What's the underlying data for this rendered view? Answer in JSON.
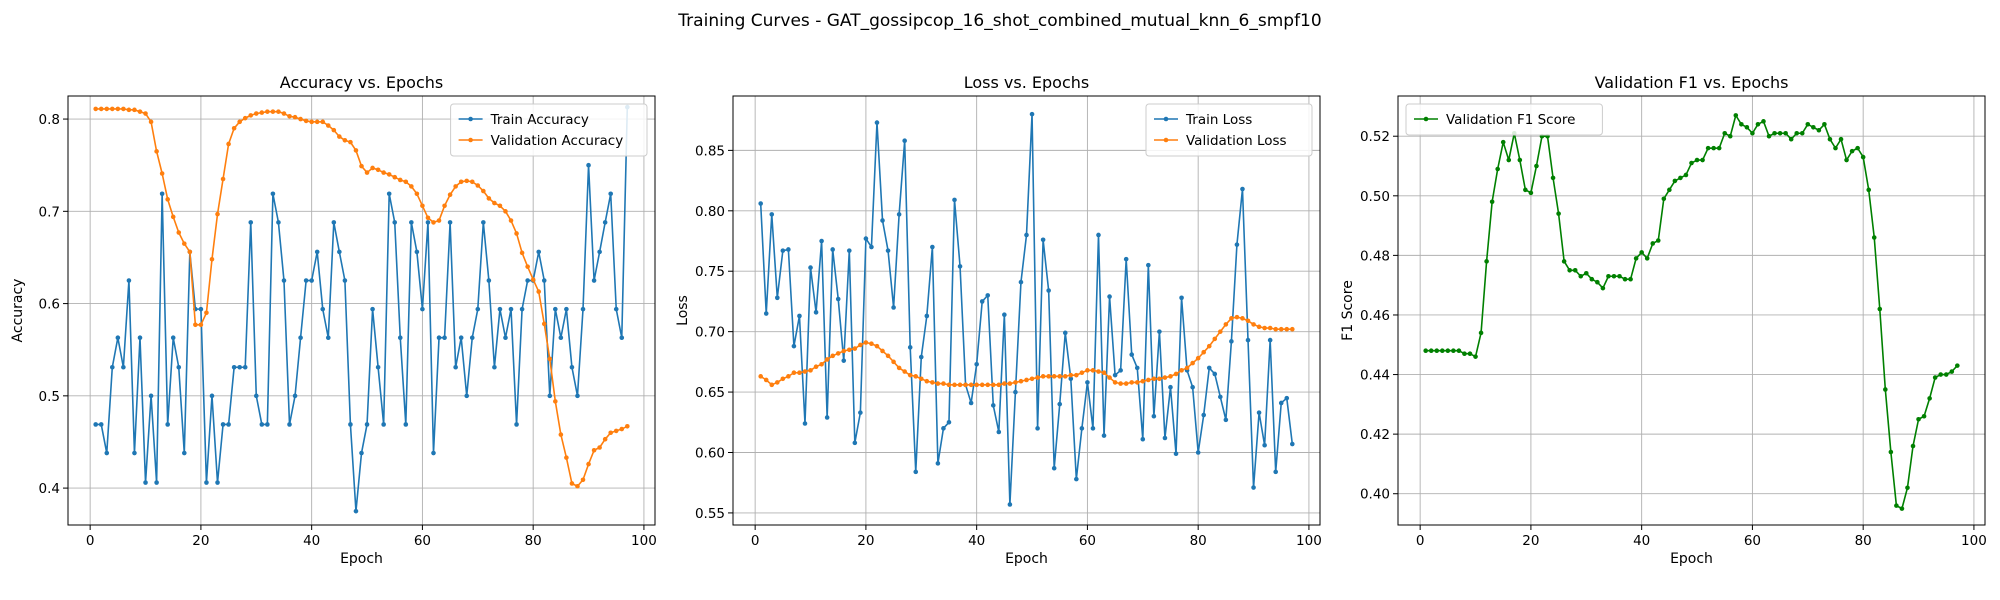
{
  "figure": {
    "suptitle": "Training Curves - GAT_gossipcop_16_shot_combined_mutual_knn_6_smpf10"
  },
  "chart_data": [
    {
      "type": "line",
      "title": "Accuracy vs. Epochs",
      "xlabel": "Epoch",
      "ylabel": "Accuracy",
      "xlim": [
        -4,
        102
      ],
      "ylim": [
        0.36,
        0.825
      ],
      "xticks": [
        0,
        20,
        40,
        60,
        80,
        100
      ],
      "xtick_labels": [
        "0",
        "20",
        "40",
        "60",
        "80",
        "100"
      ],
      "yticks": [
        0.4,
        0.5,
        0.6,
        0.7,
        0.8
      ],
      "ytick_labels": [
        "0.4",
        "0.5",
        "0.6",
        "0.7",
        "0.8"
      ],
      "grid": true,
      "legend_position": "top-right",
      "series": [
        {
          "name": "Train Accuracy",
          "color": "#1f77b4",
          "y": [
            0.469,
            0.469,
            0.438,
            0.531,
            0.563,
            0.531,
            0.625,
            0.438,
            0.563,
            0.406,
            0.5,
            0.406,
            0.719,
            0.469,
            0.563,
            0.531,
            0.438,
            0.656,
            0.594,
            0.594,
            0.406,
            0.5,
            0.406,
            0.469,
            0.469,
            0.531,
            0.531,
            0.531,
            0.688,
            0.5,
            0.469,
            0.469,
            0.719,
            0.688,
            0.625,
            0.469,
            0.5,
            0.563,
            0.625,
            0.625,
            0.656,
            0.594,
            0.563,
            0.688,
            0.656,
            0.625,
            0.469,
            0.375,
            0.438,
            0.469,
            0.594,
            0.531,
            0.469,
            0.719,
            0.688,
            0.563,
            0.469,
            0.688,
            0.656,
            0.594,
            0.688,
            0.438,
            0.563,
            0.563,
            0.688,
            0.531,
            0.563,
            0.5,
            0.563,
            0.594,
            0.688,
            0.625,
            0.531,
            0.594,
            0.563,
            0.594,
            0.469,
            0.594,
            0.625,
            0.625,
            0.656,
            0.625,
            0.5,
            0.594,
            0.563,
            0.594,
            0.531,
            0.5,
            0.594,
            0.75,
            0.625,
            0.656,
            0.688,
            0.719,
            0.594,
            0.563,
            0.813
          ]
        },
        {
          "name": "Validation Accuracy",
          "color": "#ff7f0e",
          "y": [
            0.811,
            0.811,
            0.811,
            0.811,
            0.811,
            0.811,
            0.81,
            0.81,
            0.808,
            0.806,
            0.797,
            0.765,
            0.741,
            0.713,
            0.694,
            0.677,
            0.665,
            0.656,
            0.577,
            0.577,
            0.59,
            0.648,
            0.697,
            0.735,
            0.773,
            0.79,
            0.797,
            0.801,
            0.804,
            0.806,
            0.807,
            0.808,
            0.808,
            0.808,
            0.806,
            0.803,
            0.802,
            0.8,
            0.798,
            0.797,
            0.797,
            0.797,
            0.793,
            0.788,
            0.781,
            0.777,
            0.775,
            0.766,
            0.749,
            0.742,
            0.747,
            0.745,
            0.742,
            0.74,
            0.737,
            0.734,
            0.732,
            0.727,
            0.719,
            0.706,
            0.693,
            0.688,
            0.69,
            0.706,
            0.718,
            0.727,
            0.732,
            0.733,
            0.732,
            0.728,
            0.722,
            0.714,
            0.709,
            0.706,
            0.7,
            0.69,
            0.676,
            0.655,
            0.64,
            0.626,
            0.613,
            0.578,
            0.54,
            0.494,
            0.458,
            0.433,
            0.405,
            0.402,
            0.409,
            0.426,
            0.441,
            0.444,
            0.453,
            0.46,
            0.462,
            0.464,
            0.467
          ]
        }
      ]
    },
    {
      "type": "line",
      "title": "Loss vs. Epochs",
      "xlabel": "Epoch",
      "ylabel": "Loss",
      "xlim": [
        -4,
        102
      ],
      "ylim": [
        0.54,
        0.895
      ],
      "xticks": [
        0,
        20,
        40,
        60,
        80,
        100
      ],
      "xtick_labels": [
        "0",
        "20",
        "40",
        "60",
        "80",
        "100"
      ],
      "yticks": [
        0.55,
        0.6,
        0.65,
        0.7,
        0.75,
        0.8,
        0.85
      ],
      "ytick_labels": [
        "0.55",
        "0.60",
        "0.65",
        "0.70",
        "0.75",
        "0.80",
        "0.85"
      ],
      "grid": true,
      "legend_position": "top-right",
      "series": [
        {
          "name": "Train Loss",
          "color": "#1f77b4",
          "y": [
            0.806,
            0.715,
            0.797,
            0.728,
            0.767,
            0.768,
            0.688,
            0.713,
            0.624,
            0.753,
            0.716,
            0.775,
            0.629,
            0.768,
            0.727,
            0.676,
            0.767,
            0.608,
            0.633,
            0.777,
            0.77,
            0.873,
            0.792,
            0.767,
            0.72,
            0.797,
            0.858,
            0.687,
            0.584,
            0.679,
            0.713,
            0.77,
            0.591,
            0.62,
            0.625,
            0.809,
            0.754,
            0.656,
            0.641,
            0.673,
            0.725,
            0.73,
            0.639,
            0.617,
            0.714,
            0.557,
            0.65,
            0.741,
            0.78,
            0.88,
            0.62,
            0.776,
            0.734,
            0.587,
            0.64,
            0.699,
            0.661,
            0.578,
            0.62,
            0.658,
            0.62,
            0.78,
            0.614,
            0.729,
            0.664,
            0.668,
            0.76,
            0.681,
            0.67,
            0.611,
            0.755,
            0.63,
            0.7,
            0.612,
            0.654,
            0.599,
            0.728,
            0.668,
            0.654,
            0.6,
            0.631,
            0.67,
            0.665,
            0.646,
            0.627,
            0.692,
            0.772,
            0.818,
            0.693,
            0.571,
            0.633,
            0.606,
            0.693,
            0.584,
            0.641,
            0.645,
            0.607
          ]
        },
        {
          "name": "Validation Loss",
          "color": "#ff7f0e",
          "y": [
            0.663,
            0.66,
            0.656,
            0.658,
            0.661,
            0.663,
            0.666,
            0.666,
            0.667,
            0.668,
            0.671,
            0.673,
            0.677,
            0.68,
            0.682,
            0.684,
            0.685,
            0.686,
            0.689,
            0.691,
            0.69,
            0.688,
            0.684,
            0.68,
            0.675,
            0.67,
            0.667,
            0.664,
            0.663,
            0.661,
            0.659,
            0.658,
            0.657,
            0.657,
            0.656,
            0.656,
            0.656,
            0.656,
            0.656,
            0.656,
            0.656,
            0.656,
            0.656,
            0.656,
            0.657,
            0.657,
            0.658,
            0.659,
            0.66,
            0.661,
            0.662,
            0.663,
            0.663,
            0.663,
            0.663,
            0.663,
            0.664,
            0.664,
            0.666,
            0.668,
            0.668,
            0.667,
            0.666,
            0.662,
            0.658,
            0.657,
            0.657,
            0.658,
            0.658,
            0.659,
            0.66,
            0.661,
            0.661,
            0.662,
            0.663,
            0.665,
            0.668,
            0.67,
            0.674,
            0.678,
            0.683,
            0.688,
            0.694,
            0.7,
            0.706,
            0.711,
            0.712,
            0.711,
            0.709,
            0.706,
            0.704,
            0.703,
            0.703,
            0.702,
            0.702,
            0.702,
            0.702
          ]
        }
      ]
    },
    {
      "type": "line",
      "title": "Validation F1 vs. Epochs",
      "xlabel": "Epoch",
      "ylabel": "F1 Score",
      "xlim": [
        -4,
        102
      ],
      "ylim": [
        0.3895,
        0.5335
      ],
      "xticks": [
        0,
        20,
        40,
        60,
        80,
        100
      ],
      "xtick_labels": [
        "0",
        "20",
        "40",
        "60",
        "80",
        "100"
      ],
      "yticks": [
        0.4,
        0.42,
        0.44,
        0.46,
        0.48,
        0.5,
        0.52
      ],
      "ytick_labels": [
        "0.40",
        "0.42",
        "0.44",
        "0.46",
        "0.48",
        "0.50",
        "0.52"
      ],
      "grid": true,
      "legend_position": "top-left",
      "series": [
        {
          "name": "Validation F1 Score",
          "color": "#008000",
          "y": [
            0.448,
            0.448,
            0.448,
            0.448,
            0.448,
            0.448,
            0.448,
            0.447,
            0.447,
            0.446,
            0.454,
            0.478,
            0.498,
            0.509,
            0.518,
            0.512,
            0.521,
            0.512,
            0.502,
            0.501,
            0.51,
            0.52,
            0.52,
            0.506,
            0.494,
            0.478,
            0.475,
            0.475,
            0.473,
            0.474,
            0.472,
            0.471,
            0.469,
            0.473,
            0.473,
            0.473,
            0.472,
            0.472,
            0.479,
            0.481,
            0.479,
            0.484,
            0.485,
            0.499,
            0.502,
            0.505,
            0.506,
            0.507,
            0.511,
            0.512,
            0.512,
            0.516,
            0.516,
            0.516,
            0.521,
            0.52,
            0.527,
            0.524,
            0.523,
            0.521,
            0.524,
            0.525,
            0.52,
            0.521,
            0.521,
            0.521,
            0.519,
            0.521,
            0.521,
            0.524,
            0.523,
            0.522,
            0.524,
            0.519,
            0.516,
            0.519,
            0.512,
            0.515,
            0.516,
            0.513,
            0.502,
            0.486,
            0.462,
            0.435,
            0.414,
            0.396,
            0.395,
            0.402,
            0.416,
            0.425,
            0.426,
            0.432,
            0.439,
            0.44,
            0.44,
            0.441,
            0.443
          ]
        }
      ]
    }
  ]
}
